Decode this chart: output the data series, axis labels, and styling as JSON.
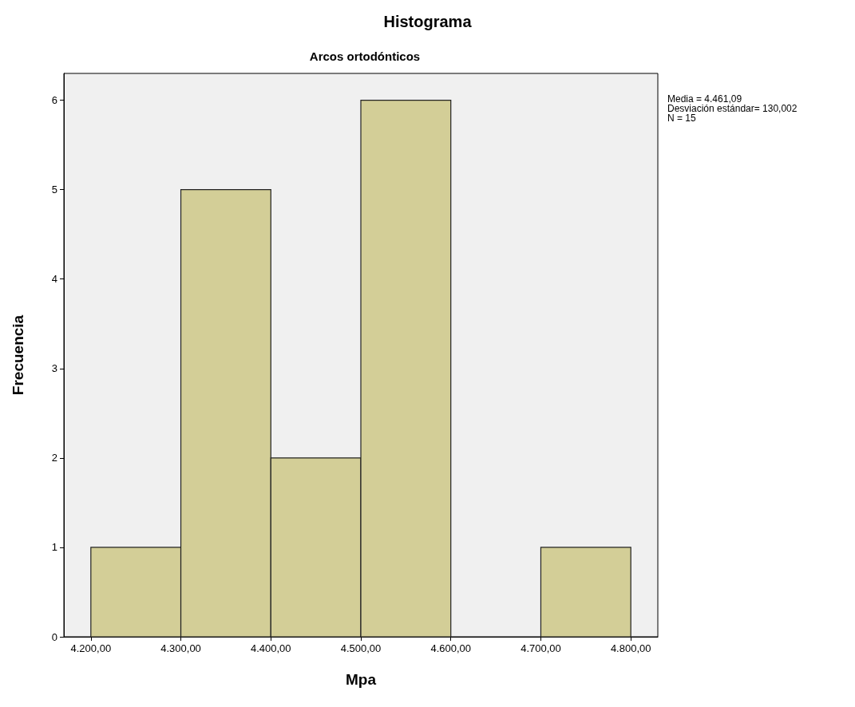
{
  "chart_data": {
    "type": "histogram",
    "title": "Histograma",
    "subtitle": "Arcos ortodónticos",
    "xlabel": "Mpa",
    "ylabel": "Frecuencia",
    "bins": [
      4200,
      4300,
      4400,
      4500,
      4600,
      4700,
      4800
    ],
    "values": [
      1,
      5,
      2,
      6,
      0,
      1
    ],
    "color": "#d3ce97",
    "xlim": [
      4170,
      4830
    ],
    "xticks": [
      {
        "value": 4200,
        "label": "4.200,00"
      },
      {
        "value": 4300,
        "label": "4.300,00"
      },
      {
        "value": 4400,
        "label": "4.400,00"
      },
      {
        "value": 4500,
        "label": "4.500,00"
      },
      {
        "value": 4600,
        "label": "4.600,00"
      },
      {
        "value": 4700,
        "label": "4.700,00"
      },
      {
        "value": 4800,
        "label": "4.800,00"
      }
    ],
    "ylim": [
      0,
      6.3
    ],
    "yticks": [
      0,
      1,
      2,
      3,
      4,
      5,
      6
    ],
    "grid": false,
    "annotations": [
      "Media = 4.461,09",
      "Desviación estándar= 130,002",
      "N = 15"
    ]
  }
}
